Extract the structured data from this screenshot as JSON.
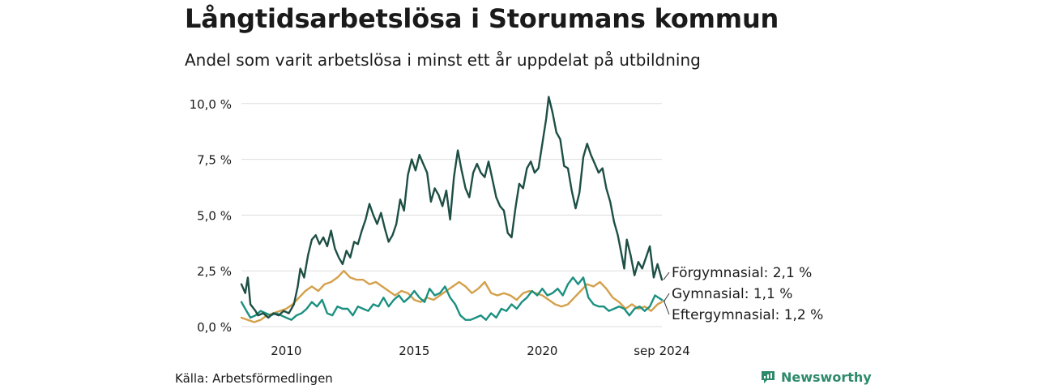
{
  "title": "Långtidsarbetslösa i Storumans kommun",
  "subtitle": "Andel som varit arbetslösa i minst ett år uppdelat på utbildning",
  "source": "Källa: Arbetsförmedlingen",
  "brand": "Newsworthy",
  "colors": {
    "forgymnasial": "#1d4f45",
    "gymnasial": "#d4a04a",
    "eftergymnasial": "#1a9080",
    "grid": "#dddddd"
  },
  "chart_data": {
    "type": "line",
    "title": "Långtidsarbetslösa i Storumans kommun",
    "subtitle": "Andel som varit arbetslösa i minst ett år uppdelat på utbildning",
    "xlim": [
      2008.25,
      2024.67
    ],
    "ylim": [
      0,
      10.5
    ],
    "y_ticks": [
      0,
      2.5,
      5,
      7.5,
      10
    ],
    "y_tick_labels": [
      "0,0 %",
      "2,5 %",
      "5,0 %",
      "7,5 %",
      "10,0 %"
    ],
    "x_ticks": [
      2010,
      2015,
      2020,
      2024.67
    ],
    "x_tick_labels": [
      "2010",
      "2015",
      "2020",
      "sep 2024"
    ],
    "grid": true,
    "series": [
      {
        "name": "Förgymnasial",
        "end_label": "Förgymnasial: 2,1 %",
        "color_key": "forgymnasial",
        "points": [
          [
            2008.25,
            1.9
          ],
          [
            2008.4,
            1.5
          ],
          [
            2008.5,
            2.2
          ],
          [
            2008.6,
            1.0
          ],
          [
            2008.8,
            0.7
          ],
          [
            2008.9,
            0.5
          ],
          [
            2009.1,
            0.6
          ],
          [
            2009.3,
            0.4
          ],
          [
            2009.5,
            0.6
          ],
          [
            2009.7,
            0.5
          ],
          [
            2009.9,
            0.7
          ],
          [
            2010.1,
            0.6
          ],
          [
            2010.3,
            1.0
          ],
          [
            2010.45,
            1.8
          ],
          [
            2010.55,
            2.6
          ],
          [
            2010.7,
            2.2
          ],
          [
            2010.85,
            3.2
          ],
          [
            2011.0,
            3.9
          ],
          [
            2011.15,
            4.1
          ],
          [
            2011.3,
            3.7
          ],
          [
            2011.45,
            4.0
          ],
          [
            2011.6,
            3.6
          ],
          [
            2011.75,
            4.3
          ],
          [
            2011.9,
            3.5
          ],
          [
            2012.05,
            3.1
          ],
          [
            2012.2,
            2.8
          ],
          [
            2012.35,
            3.4
          ],
          [
            2012.5,
            3.1
          ],
          [
            2012.65,
            3.8
          ],
          [
            2012.8,
            3.7
          ],
          [
            2012.95,
            4.3
          ],
          [
            2013.1,
            4.8
          ],
          [
            2013.25,
            5.5
          ],
          [
            2013.4,
            5.0
          ],
          [
            2013.55,
            4.6
          ],
          [
            2013.7,
            5.1
          ],
          [
            2013.85,
            4.4
          ],
          [
            2014.0,
            3.8
          ],
          [
            2014.15,
            4.1
          ],
          [
            2014.3,
            4.6
          ],
          [
            2014.45,
            5.7
          ],
          [
            2014.6,
            5.2
          ],
          [
            2014.75,
            6.8
          ],
          [
            2014.9,
            7.5
          ],
          [
            2015.05,
            7.0
          ],
          [
            2015.2,
            7.7
          ],
          [
            2015.35,
            7.3
          ],
          [
            2015.5,
            6.9
          ],
          [
            2015.65,
            5.6
          ],
          [
            2015.8,
            6.2
          ],
          [
            2015.95,
            5.9
          ],
          [
            2016.1,
            5.4
          ],
          [
            2016.25,
            6.1
          ],
          [
            2016.4,
            4.8
          ],
          [
            2016.55,
            6.7
          ],
          [
            2016.7,
            7.9
          ],
          [
            2016.85,
            7.0
          ],
          [
            2017.0,
            6.2
          ],
          [
            2017.15,
            5.8
          ],
          [
            2017.3,
            6.9
          ],
          [
            2017.45,
            7.3
          ],
          [
            2017.6,
            6.9
          ],
          [
            2017.75,
            6.7
          ],
          [
            2017.9,
            7.4
          ],
          [
            2018.05,
            6.6
          ],
          [
            2018.2,
            5.8
          ],
          [
            2018.35,
            5.4
          ],
          [
            2018.5,
            5.2
          ],
          [
            2018.65,
            4.2
          ],
          [
            2018.8,
            4.0
          ],
          [
            2018.95,
            5.3
          ],
          [
            2019.1,
            6.4
          ],
          [
            2019.25,
            6.2
          ],
          [
            2019.4,
            7.1
          ],
          [
            2019.55,
            7.4
          ],
          [
            2019.7,
            6.9
          ],
          [
            2019.85,
            7.1
          ],
          [
            2020.0,
            8.2
          ],
          [
            2020.15,
            9.3
          ],
          [
            2020.25,
            10.3
          ],
          [
            2020.4,
            9.6
          ],
          [
            2020.55,
            8.7
          ],
          [
            2020.7,
            8.4
          ],
          [
            2020.85,
            7.2
          ],
          [
            2021.0,
            7.1
          ],
          [
            2021.15,
            6.1
          ],
          [
            2021.3,
            5.3
          ],
          [
            2021.45,
            6.0
          ],
          [
            2021.6,
            7.6
          ],
          [
            2021.75,
            8.2
          ],
          [
            2021.9,
            7.7
          ],
          [
            2022.05,
            7.3
          ],
          [
            2022.2,
            6.9
          ],
          [
            2022.35,
            7.1
          ],
          [
            2022.5,
            6.2
          ],
          [
            2022.65,
            5.6
          ],
          [
            2022.8,
            4.7
          ],
          [
            2022.95,
            4.1
          ],
          [
            2023.1,
            3.2
          ],
          [
            2023.2,
            2.6
          ],
          [
            2023.3,
            3.9
          ],
          [
            2023.45,
            3.2
          ],
          [
            2023.6,
            2.3
          ],
          [
            2023.75,
            2.9
          ],
          [
            2023.9,
            2.6
          ],
          [
            2024.05,
            3.1
          ],
          [
            2024.2,
            3.6
          ],
          [
            2024.35,
            2.2
          ],
          [
            2024.5,
            2.8
          ],
          [
            2024.67,
            2.1
          ]
        ]
      },
      {
        "name": "Gymnasial",
        "end_label": "Gymnasial: 1,1 %",
        "color_key": "gymnasial",
        "points": [
          [
            2008.25,
            0.4
          ],
          [
            2008.5,
            0.3
          ],
          [
            2008.75,
            0.2
          ],
          [
            2009.0,
            0.3
          ],
          [
            2009.25,
            0.5
          ],
          [
            2009.5,
            0.6
          ],
          [
            2009.75,
            0.7
          ],
          [
            2010.0,
            0.8
          ],
          [
            2010.25,
            1.0
          ],
          [
            2010.5,
            1.3
          ],
          [
            2010.75,
            1.6
          ],
          [
            2011.0,
            1.8
          ],
          [
            2011.25,
            1.6
          ],
          [
            2011.5,
            1.9
          ],
          [
            2011.75,
            2.0
          ],
          [
            2012.0,
            2.2
          ],
          [
            2012.25,
            2.5
          ],
          [
            2012.5,
            2.2
          ],
          [
            2012.75,
            2.1
          ],
          [
            2013.0,
            2.1
          ],
          [
            2013.25,
            1.9
          ],
          [
            2013.5,
            2.0
          ],
          [
            2013.75,
            1.8
          ],
          [
            2014.0,
            1.6
          ],
          [
            2014.25,
            1.4
          ],
          [
            2014.5,
            1.6
          ],
          [
            2014.75,
            1.5
          ],
          [
            2015.0,
            1.2
          ],
          [
            2015.25,
            1.1
          ],
          [
            2015.5,
            1.3
          ],
          [
            2015.75,
            1.2
          ],
          [
            2016.0,
            1.4
          ],
          [
            2016.25,
            1.6
          ],
          [
            2016.5,
            1.8
          ],
          [
            2016.75,
            2.0
          ],
          [
            2017.0,
            1.8
          ],
          [
            2017.25,
            1.5
          ],
          [
            2017.5,
            1.7
          ],
          [
            2017.75,
            2.0
          ],
          [
            2018.0,
            1.5
          ],
          [
            2018.25,
            1.4
          ],
          [
            2018.5,
            1.5
          ],
          [
            2018.75,
            1.4
          ],
          [
            2019.0,
            1.2
          ],
          [
            2019.25,
            1.5
          ],
          [
            2019.5,
            1.6
          ],
          [
            2019.75,
            1.5
          ],
          [
            2020.0,
            1.4
          ],
          [
            2020.25,
            1.2
          ],
          [
            2020.5,
            1.0
          ],
          [
            2020.75,
            0.9
          ],
          [
            2021.0,
            1.0
          ],
          [
            2021.25,
            1.3
          ],
          [
            2021.5,
            1.6
          ],
          [
            2021.75,
            1.9
          ],
          [
            2022.0,
            1.8
          ],
          [
            2022.25,
            2.0
          ],
          [
            2022.5,
            1.7
          ],
          [
            2022.75,
            1.3
          ],
          [
            2023.0,
            1.1
          ],
          [
            2023.25,
            0.8
          ],
          [
            2023.5,
            1.0
          ],
          [
            2023.75,
            0.8
          ],
          [
            2024.0,
            0.9
          ],
          [
            2024.25,
            0.7
          ],
          [
            2024.5,
            1.0
          ],
          [
            2024.67,
            1.1
          ]
        ]
      },
      {
        "name": "Eftergymnasial",
        "end_label": "Eftergymnasial: 1,2 %",
        "color_key": "eftergymnasial",
        "points": [
          [
            2008.25,
            1.1
          ],
          [
            2008.4,
            0.8
          ],
          [
            2008.6,
            0.4
          ],
          [
            2008.8,
            0.5
          ],
          [
            2009.0,
            0.7
          ],
          [
            2009.2,
            0.6
          ],
          [
            2009.4,
            0.5
          ],
          [
            2009.6,
            0.6
          ],
          [
            2009.8,
            0.5
          ],
          [
            2010.0,
            0.4
          ],
          [
            2010.2,
            0.3
          ],
          [
            2010.4,
            0.5
          ],
          [
            2010.6,
            0.6
          ],
          [
            2010.8,
            0.8
          ],
          [
            2011.0,
            1.1
          ],
          [
            2011.2,
            0.9
          ],
          [
            2011.4,
            1.2
          ],
          [
            2011.6,
            0.6
          ],
          [
            2011.8,
            0.5
          ],
          [
            2012.0,
            0.9
          ],
          [
            2012.2,
            0.8
          ],
          [
            2012.4,
            0.8
          ],
          [
            2012.6,
            0.5
          ],
          [
            2012.8,
            0.9
          ],
          [
            2013.0,
            0.8
          ],
          [
            2013.2,
            0.7
          ],
          [
            2013.4,
            1.0
          ],
          [
            2013.6,
            0.9
          ],
          [
            2013.8,
            1.3
          ],
          [
            2014.0,
            0.9
          ],
          [
            2014.2,
            1.2
          ],
          [
            2014.4,
            1.4
          ],
          [
            2014.6,
            1.1
          ],
          [
            2014.8,
            1.3
          ],
          [
            2015.0,
            1.6
          ],
          [
            2015.2,
            1.3
          ],
          [
            2015.4,
            1.1
          ],
          [
            2015.6,
            1.7
          ],
          [
            2015.8,
            1.4
          ],
          [
            2016.0,
            1.5
          ],
          [
            2016.2,
            1.8
          ],
          [
            2016.4,
            1.3
          ],
          [
            2016.6,
            1.0
          ],
          [
            2016.8,
            0.5
          ],
          [
            2017.0,
            0.3
          ],
          [
            2017.2,
            0.3
          ],
          [
            2017.4,
            0.4
          ],
          [
            2017.6,
            0.5
          ],
          [
            2017.8,
            0.3
          ],
          [
            2018.0,
            0.6
          ],
          [
            2018.2,
            0.4
          ],
          [
            2018.4,
            0.8
          ],
          [
            2018.6,
            0.7
          ],
          [
            2018.8,
            1.0
          ],
          [
            2019.0,
            0.8
          ],
          [
            2019.2,
            1.1
          ],
          [
            2019.4,
            1.3
          ],
          [
            2019.6,
            1.6
          ],
          [
            2019.8,
            1.4
          ],
          [
            2020.0,
            1.7
          ],
          [
            2020.2,
            1.4
          ],
          [
            2020.4,
            1.5
          ],
          [
            2020.6,
            1.7
          ],
          [
            2020.8,
            1.4
          ],
          [
            2021.0,
            1.9
          ],
          [
            2021.2,
            2.2
          ],
          [
            2021.4,
            1.9
          ],
          [
            2021.6,
            2.2
          ],
          [
            2021.8,
            1.3
          ],
          [
            2022.0,
            1.0
          ],
          [
            2022.2,
            0.9
          ],
          [
            2022.4,
            0.9
          ],
          [
            2022.6,
            0.7
          ],
          [
            2022.8,
            0.8
          ],
          [
            2023.0,
            0.9
          ],
          [
            2023.2,
            0.8
          ],
          [
            2023.4,
            0.5
          ],
          [
            2023.6,
            0.8
          ],
          [
            2023.8,
            0.9
          ],
          [
            2024.0,
            0.7
          ],
          [
            2024.2,
            0.9
          ],
          [
            2024.4,
            1.4
          ],
          [
            2024.67,
            1.2
          ]
        ]
      }
    ]
  }
}
